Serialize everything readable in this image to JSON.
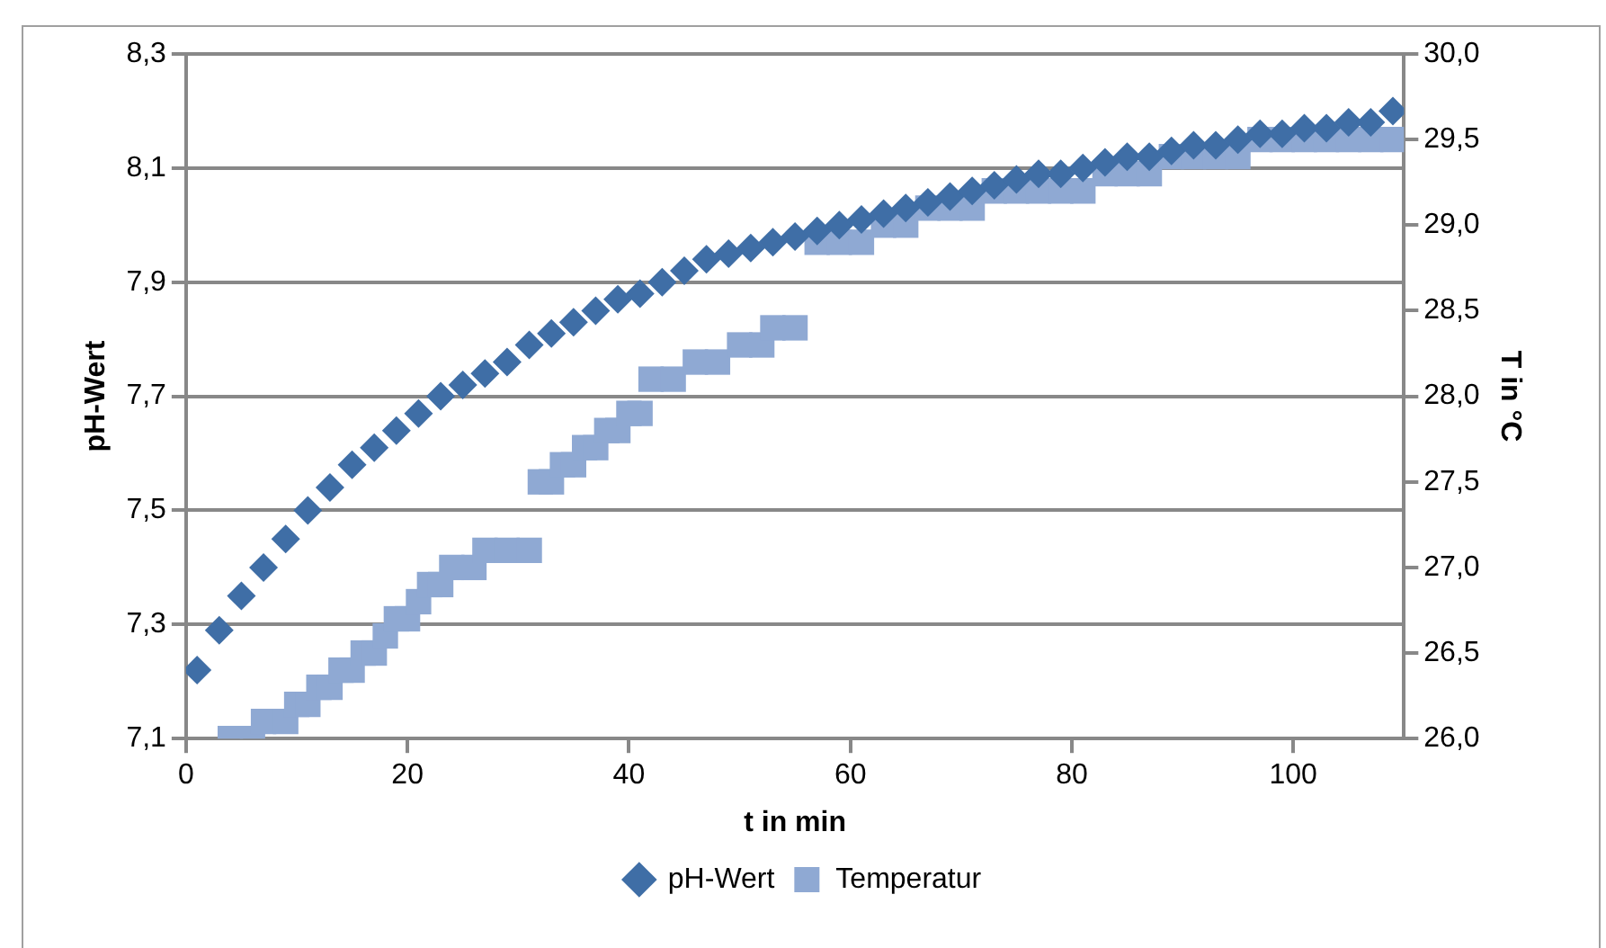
{
  "chart_data": {
    "type": "scatter",
    "xlabel": "t in min",
    "ylabel": "pH-Wert",
    "y2label": "T in °C",
    "xlim": [
      0,
      110
    ],
    "xticks": [
      0,
      20,
      40,
      60,
      80,
      100
    ],
    "ylim": [
      7.1,
      8.3
    ],
    "yticks": [
      {
        "value": 7.1,
        "label": "7,1"
      },
      {
        "value": 7.3,
        "label": "7,3"
      },
      {
        "value": 7.5,
        "label": "7,5"
      },
      {
        "value": 7.7,
        "label": "7,7"
      },
      {
        "value": 7.9,
        "label": "7,9"
      },
      {
        "value": 8.1,
        "label": "8,1"
      },
      {
        "value": 8.3,
        "label": "8,3"
      }
    ],
    "y2lim": [
      26,
      30
    ],
    "y2ticks": [
      {
        "value": 26,
        "label": "26,0"
      },
      {
        "value": 26.5,
        "label": "26,5"
      },
      {
        "value": 27,
        "label": "27,0"
      },
      {
        "value": 27.5,
        "label": "27,5"
      },
      {
        "value": 28,
        "label": "28,0"
      },
      {
        "value": 28.5,
        "label": "28,5"
      },
      {
        "value": 29,
        "label": "29,0"
      },
      {
        "value": 29.5,
        "label": "29,5"
      },
      {
        "value": 30,
        "label": "30,0"
      }
    ],
    "grid": "y",
    "legend": "bottom",
    "series": [
      {
        "name": "pH-Wert",
        "color": "#3f6ea6",
        "marker": "diamond",
        "x": [
          1,
          3,
          5,
          7,
          9,
          11,
          13,
          15,
          17,
          19,
          21,
          23,
          25,
          27,
          29,
          31,
          33,
          35,
          37,
          39,
          41,
          43,
          45,
          47,
          49,
          51,
          53,
          55,
          57,
          59,
          61,
          63,
          65,
          67,
          69,
          71,
          73,
          75,
          77,
          79,
          81,
          83,
          85,
          87,
          89,
          91,
          93,
          95,
          97,
          99,
          101,
          103,
          105,
          107,
          109
        ],
        "values": [
          7.22,
          7.29,
          7.35,
          7.4,
          7.45,
          7.5,
          7.54,
          7.58,
          7.61,
          7.64,
          7.67,
          7.7,
          7.72,
          7.74,
          7.76,
          7.79,
          7.81,
          7.83,
          7.85,
          7.87,
          7.88,
          7.9,
          7.92,
          7.94,
          7.95,
          7.96,
          7.97,
          7.98,
          7.99,
          8.0,
          8.01,
          8.02,
          8.03,
          8.04,
          8.05,
          8.06,
          8.07,
          8.08,
          8.09,
          8.09,
          8.1,
          8.11,
          8.12,
          8.12,
          8.13,
          8.14,
          8.14,
          8.15,
          8.16,
          8.16,
          8.17,
          8.17,
          8.18,
          8.18,
          8.2
        ]
      },
      {
        "name": "Temperatur",
        "color": "#8fa9d3",
        "marker": "square",
        "axis": "y2",
        "x": [
          4,
          6,
          7,
          9,
          10,
          11,
          12,
          13,
          14,
          15,
          16,
          17,
          18,
          19,
          20,
          21,
          22,
          23,
          24,
          26,
          27,
          29,
          31,
          32,
          33,
          34,
          35,
          36,
          37,
          38,
          39,
          40,
          41,
          42,
          44,
          46,
          48,
          50,
          52,
          53,
          55,
          57,
          59,
          61,
          63,
          65,
          67,
          69,
          71,
          73,
          75,
          77,
          79,
          81,
          83,
          85,
          87,
          89,
          91,
          93,
          95,
          97,
          99,
          101,
          103,
          105,
          107,
          109
        ],
        "values": [
          26.0,
          26.0,
          26.1,
          26.1,
          26.2,
          26.2,
          26.3,
          26.3,
          26.4,
          26.4,
          26.5,
          26.5,
          26.6,
          26.7,
          26.7,
          26.8,
          26.9,
          26.9,
          27.0,
          27.0,
          27.1,
          27.1,
          27.1,
          27.5,
          27.5,
          27.6,
          27.6,
          27.7,
          27.7,
          27.8,
          27.8,
          27.9,
          27.9,
          28.1,
          28.1,
          28.2,
          28.2,
          28.3,
          28.3,
          28.4,
          28.4,
          28.9,
          28.9,
          28.9,
          29.0,
          29.0,
          29.1,
          29.1,
          29.1,
          29.2,
          29.2,
          29.2,
          29.2,
          29.2,
          29.3,
          29.3,
          29.3,
          29.4,
          29.4,
          29.4,
          29.4,
          29.5,
          29.5,
          29.5,
          29.5,
          29.5,
          29.5,
          29.5
        ]
      }
    ]
  }
}
